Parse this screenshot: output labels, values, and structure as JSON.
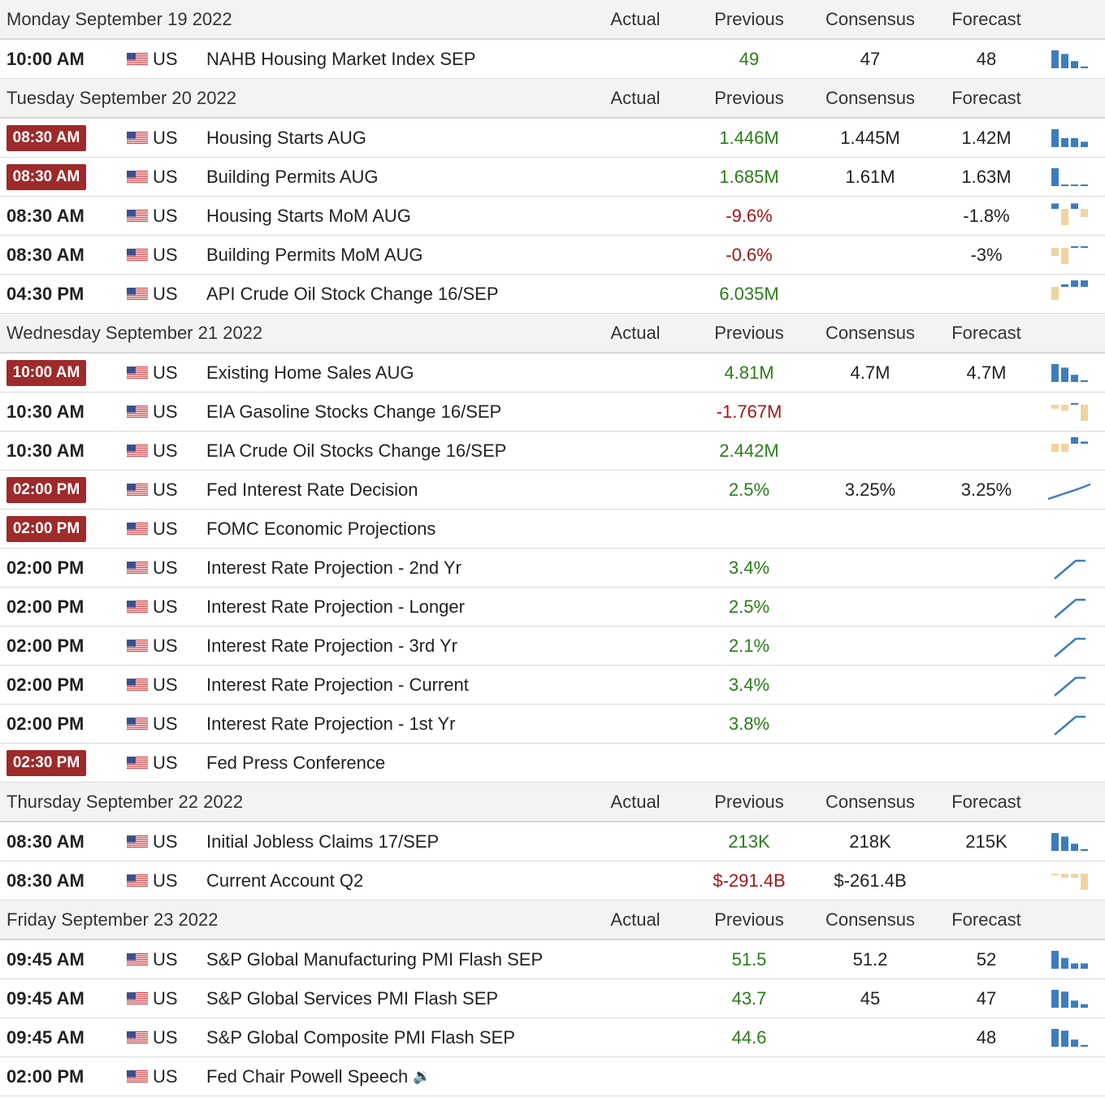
{
  "headers": {
    "actual": "Actual",
    "previous": "Previous",
    "consensus": "Consensus",
    "forecast": "Forecast"
  },
  "colors": {
    "positive": "#2a7d1a",
    "negative": "#a31515",
    "badge": "#9e2a2b",
    "spark_blue": "#3d7cbf",
    "spark_tan": "#f0d4a0"
  },
  "days": [
    {
      "date": "Monday September 19 2022",
      "events": [
        {
          "time": "10:00 AM",
          "highlight": false,
          "country": "US",
          "event": "NAHB Housing Market Index SEP",
          "actual": "",
          "previous": "49",
          "prev_trend": "pos",
          "consensus": "47",
          "forecast": "48",
          "spark": "bars-blue-desc",
          "spark_values": [
            5,
            4,
            2,
            0.5
          ]
        }
      ]
    },
    {
      "date": "Tuesday September 20 2022",
      "events": [
        {
          "time": "08:30 AM",
          "highlight": true,
          "country": "US",
          "event": "Housing Starts AUG",
          "actual": "",
          "previous": "1.446M",
          "prev_trend": "pos",
          "consensus": "1.445M",
          "forecast": "1.42M",
          "spark": "bars-blue",
          "spark_values": [
            5,
            2.5,
            2.5,
            1.5
          ]
        },
        {
          "time": "08:30 AM",
          "highlight": true,
          "country": "US",
          "event": "Building Permits AUG",
          "actual": "",
          "previous": "1.685M",
          "prev_trend": "pos",
          "consensus": "1.61M",
          "forecast": "1.63M",
          "spark": "bars-blue",
          "spark_values": [
            5,
            0.4,
            0.4,
            0.4
          ]
        },
        {
          "time": "08:30 AM",
          "highlight": false,
          "country": "US",
          "event": "Housing Starts MoM AUG",
          "actual": "",
          "previous": "-9.6%",
          "prev_trend": "neg",
          "consensus": "",
          "forecast": "-1.8%",
          "spark": "bars-mixed",
          "spark_values": [
            1,
            -3,
            1,
            -1.5
          ]
        },
        {
          "time": "08:30 AM",
          "highlight": false,
          "country": "US",
          "event": "Building Permits MoM AUG",
          "actual": "",
          "previous": "-0.6%",
          "prev_trend": "neg",
          "consensus": "",
          "forecast": "-3%",
          "spark": "bars-mixed",
          "spark_values": [
            -2,
            -4,
            0.4,
            0.4
          ]
        },
        {
          "time": "04:30 PM",
          "highlight": false,
          "country": "US",
          "event": "API Crude Oil Stock Change 16/SEP",
          "actual": "",
          "previous": "6.035M",
          "prev_trend": "pos",
          "consensus": "",
          "forecast": "",
          "spark": "bars-mixed",
          "spark_values": [
            -2,
            0.4,
            1.5,
            2.5
          ]
        }
      ]
    },
    {
      "date": "Wednesday September 21 2022",
      "events": [
        {
          "time": "10:00 AM",
          "highlight": true,
          "country": "US",
          "event": "Existing Home Sales AUG",
          "actual": "",
          "previous": "4.81M",
          "prev_trend": "pos",
          "consensus": "4.7M",
          "forecast": "4.7M",
          "spark": "bars-blue-desc",
          "spark_values": [
            5,
            4,
            2,
            0.5
          ]
        },
        {
          "time": "10:30 AM",
          "highlight": false,
          "country": "US",
          "event": "EIA Gasoline Stocks Change 16/SEP",
          "actual": "",
          "previous": "-1.767M",
          "prev_trend": "neg",
          "consensus": "",
          "forecast": "",
          "spark": "bars-mixed",
          "spark_values": [
            -1,
            -1.5,
            0.4,
            -4
          ]
        },
        {
          "time": "10:30 AM",
          "highlight": false,
          "country": "US",
          "event": "EIA Crude Oil Stocks Change 16/SEP",
          "actual": "",
          "previous": "2.442M",
          "prev_trend": "pos",
          "consensus": "",
          "forecast": "",
          "spark": "bars-mixed",
          "spark_values": [
            -1.5,
            -1.5,
            3,
            0.4
          ]
        },
        {
          "time": "02:00 PM",
          "highlight": true,
          "country": "US",
          "event": "Fed Interest Rate Decision",
          "actual": "",
          "previous": "2.5%",
          "prev_trend": "pos",
          "consensus": "3.25%",
          "forecast": "3.25%",
          "spark": "line",
          "spark_values": [
            1,
            2,
            3,
            4
          ]
        },
        {
          "time": "02:00 PM",
          "highlight": true,
          "country": "US",
          "event": "FOMC Economic Projections",
          "actual": "",
          "previous": "",
          "prev_trend": "pos",
          "consensus": "",
          "forecast": "",
          "spark": "none",
          "spark_values": []
        },
        {
          "time": "02:00 PM",
          "highlight": false,
          "country": "US",
          "event": "Interest Rate Projection - 2nd Yr",
          "actual": "",
          "previous": "3.4%",
          "prev_trend": "pos",
          "consensus": "",
          "forecast": "",
          "spark": "line-step",
          "spark_values": [
            1,
            2,
            3,
            3
          ]
        },
        {
          "time": "02:00 PM",
          "highlight": false,
          "country": "US",
          "event": "Interest Rate Projection - Longer",
          "actual": "",
          "previous": "2.5%",
          "prev_trend": "pos",
          "consensus": "",
          "forecast": "",
          "spark": "line-step",
          "spark_values": [
            1,
            2,
            3,
            3
          ]
        },
        {
          "time": "02:00 PM",
          "highlight": false,
          "country": "US",
          "event": "Interest Rate Projection - 3rd Yr",
          "actual": "",
          "previous": "2.1%",
          "prev_trend": "pos",
          "consensus": "",
          "forecast": "",
          "spark": "line-step",
          "spark_values": [
            1,
            2,
            3,
            3
          ]
        },
        {
          "time": "02:00 PM",
          "highlight": false,
          "country": "US",
          "event": "Interest Rate Projection - Current",
          "actual": "",
          "previous": "3.4%",
          "prev_trend": "pos",
          "consensus": "",
          "forecast": "",
          "spark": "line-step",
          "spark_values": [
            1,
            2,
            3,
            3
          ]
        },
        {
          "time": "02:00 PM",
          "highlight": false,
          "country": "US",
          "event": "Interest Rate Projection - 1st Yr",
          "actual": "",
          "previous": "3.8%",
          "prev_trend": "pos",
          "consensus": "",
          "forecast": "",
          "spark": "line-step",
          "spark_values": [
            1,
            2,
            3,
            3
          ]
        },
        {
          "time": "02:30 PM",
          "highlight": true,
          "country": "US",
          "event": "Fed Press Conference",
          "actual": "",
          "previous": "",
          "prev_trend": "pos",
          "consensus": "",
          "forecast": "",
          "spark": "none",
          "spark_values": []
        }
      ]
    },
    {
      "date": "Thursday September 22 2022",
      "events": [
        {
          "time": "08:30 AM",
          "highlight": false,
          "country": "US",
          "event": "Initial Jobless Claims 17/SEP",
          "actual": "",
          "previous": "213K",
          "prev_trend": "pos",
          "consensus": "218K",
          "forecast": "215K",
          "spark": "bars-blue-desc",
          "spark_values": [
            5,
            4,
            2,
            0.5
          ]
        },
        {
          "time": "08:30 AM",
          "highlight": false,
          "country": "US",
          "event": "Current Account Q2",
          "actual": "",
          "previous": "$-291.4B",
          "prev_trend": "neg",
          "consensus": "$-261.4B",
          "forecast": "",
          "spark": "bars-mixed",
          "spark_values": [
            -0.4,
            -1,
            -1,
            -4
          ]
        }
      ]
    },
    {
      "date": "Friday September 23 2022",
      "events": [
        {
          "time": "09:45 AM",
          "highlight": false,
          "country": "US",
          "event": "S&P Global Manufacturing PMI Flash SEP",
          "actual": "",
          "previous": "51.5",
          "prev_trend": "pos",
          "consensus": "51.2",
          "forecast": "52",
          "spark": "bars-blue-desc",
          "spark_values": [
            5,
            3,
            1.5,
            1.5
          ]
        },
        {
          "time": "09:45 AM",
          "highlight": false,
          "country": "US",
          "event": "S&P Global Services PMI Flash SEP",
          "actual": "",
          "previous": "43.7",
          "prev_trend": "pos",
          "consensus": "45",
          "forecast": "47",
          "spark": "bars-blue-desc",
          "spark_values": [
            5,
            4.5,
            2,
            1
          ]
        },
        {
          "time": "09:45 AM",
          "highlight": false,
          "country": "US",
          "event": "S&P Global Composite PMI Flash SEP",
          "actual": "",
          "previous": "44.6",
          "prev_trend": "pos",
          "consensus": "",
          "forecast": "48",
          "spark": "bars-blue-desc",
          "spark_values": [
            5,
            4.5,
            2,
            0.5
          ]
        },
        {
          "time": "02:00 PM",
          "highlight": false,
          "country": "US",
          "event": "Fed Chair Powell Speech",
          "speaker_icon": true,
          "actual": "",
          "previous": "",
          "prev_trend": "pos",
          "consensus": "",
          "forecast": "",
          "spark": "none",
          "spark_values": []
        }
      ]
    }
  ]
}
